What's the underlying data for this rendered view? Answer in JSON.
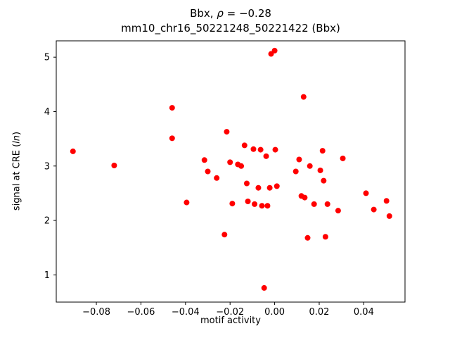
{
  "figure": {
    "title_line1_prefix": "Bbx, ",
    "title_line1_rho": "ρ",
    "title_line1_rest": " = −0.28",
    "title_line2": "mm10_chr16_50221248_50221422 (Bbx)",
    "xlabel": "motif activity",
    "ylabel_prefix": "signal at CRE (",
    "ylabel_italic": "ln",
    "ylabel_suffix": ")"
  },
  "chart_data": {
    "type": "scatter",
    "title": "Bbx, ρ = −0.28",
    "subtitle": "mm10_chr16_50221248_50221422 (Bbx)",
    "xlabel": "motif activity",
    "ylabel": "signal at CRE (ln)",
    "marker_color": "#ff0000",
    "marker_radius_px": 4,
    "grid": false,
    "legend": null,
    "xlim": [
      -0.098,
      0.0585
    ],
    "ylim": [
      0.5,
      5.3
    ],
    "xticks": {
      "values": [
        -0.08,
        -0.06,
        -0.04,
        -0.02,
        0.0,
        0.02,
        0.04
      ],
      "labels": [
        "−0.08",
        "−0.06",
        "−0.04",
        "−0.02",
        "0.00",
        "0.02",
        "0.04"
      ]
    },
    "yticks": {
      "values": [
        1,
        2,
        3,
        4,
        5
      ],
      "labels": [
        "1",
        "2",
        "3",
        "4",
        "5"
      ]
    },
    "points": [
      [
        -0.0905,
        3.27
      ],
      [
        -0.072,
        3.01
      ],
      [
        -0.046,
        4.07
      ],
      [
        -0.046,
        3.51
      ],
      [
        -0.0395,
        2.33
      ],
      [
        -0.0315,
        3.11
      ],
      [
        -0.03,
        2.9
      ],
      [
        -0.026,
        2.78
      ],
      [
        -0.0215,
        3.63
      ],
      [
        -0.0225,
        1.74
      ],
      [
        -0.02,
        3.07
      ],
      [
        -0.019,
        2.31
      ],
      [
        -0.0165,
        3.03
      ],
      [
        -0.015,
        3.0
      ],
      [
        -0.0135,
        3.38
      ],
      [
        -0.0125,
        2.68
      ],
      [
        -0.012,
        2.35
      ],
      [
        -0.0095,
        3.31
      ],
      [
        -0.009,
        2.3
      ],
      [
        -0.0073,
        2.6
      ],
      [
        -0.0063,
        3.3
      ],
      [
        -0.0057,
        2.27
      ],
      [
        -0.0047,
        0.76
      ],
      [
        -0.0038,
        3.18
      ],
      [
        -0.0032,
        2.27
      ],
      [
        -0.0022,
        2.6
      ],
      [
        -0.0016,
        5.06
      ],
      [
        0.0,
        5.12
      ],
      [
        0.0003,
        3.3
      ],
      [
        0.001,
        2.63
      ],
      [
        0.0095,
        2.9
      ],
      [
        0.011,
        3.12
      ],
      [
        0.012,
        2.45
      ],
      [
        0.013,
        4.27
      ],
      [
        0.0135,
        2.42
      ],
      [
        0.0148,
        1.68
      ],
      [
        0.0158,
        3.0
      ],
      [
        0.0177,
        2.3
      ],
      [
        0.0205,
        2.92
      ],
      [
        0.0215,
        3.28
      ],
      [
        0.022,
        2.73
      ],
      [
        0.0228,
        1.7
      ],
      [
        0.0237,
        2.3
      ],
      [
        0.0285,
        2.18
      ],
      [
        0.0306,
        3.14
      ],
      [
        0.041,
        2.5
      ],
      [
        0.0445,
        2.2
      ],
      [
        0.0502,
        2.36
      ],
      [
        0.0515,
        2.08
      ]
    ]
  }
}
